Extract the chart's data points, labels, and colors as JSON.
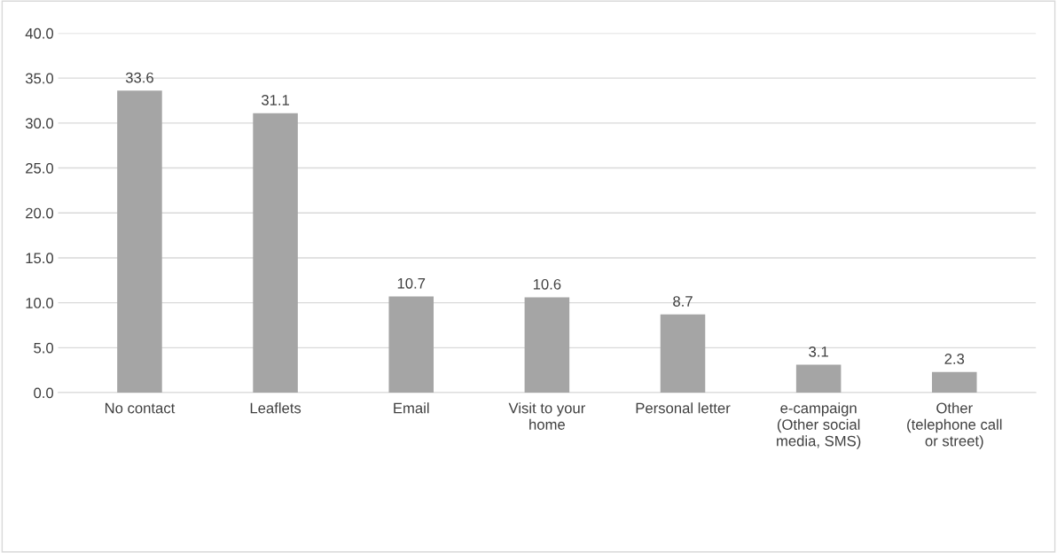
{
  "chart_data": {
    "type": "bar",
    "categories": [
      "No contact",
      "Leaflets",
      "Email",
      "Visit to your home",
      "Personal letter",
      "e-campaign (Other social media, SMS)",
      "Other (telephone call or street)"
    ],
    "values": [
      33.6,
      31.1,
      10.7,
      10.6,
      8.7,
      3.1,
      2.3
    ],
    "color": "#a5a5a5",
    "ylim": [
      0,
      40
    ],
    "yticks": [
      {
        "value": 0,
        "label": "0.0"
      },
      {
        "value": 5,
        "label": "5.0"
      },
      {
        "value": 10,
        "label": "10.0"
      },
      {
        "value": 15,
        "label": "15.0"
      },
      {
        "value": 20,
        "label": "20.0"
      },
      {
        "value": 25,
        "label": "25.0"
      },
      {
        "value": 30,
        "label": "30.0"
      },
      {
        "value": 35,
        "label": "35.0"
      },
      {
        "value": 40,
        "label": "40.0"
      }
    ],
    "grid": "y",
    "data_labels": true
  }
}
